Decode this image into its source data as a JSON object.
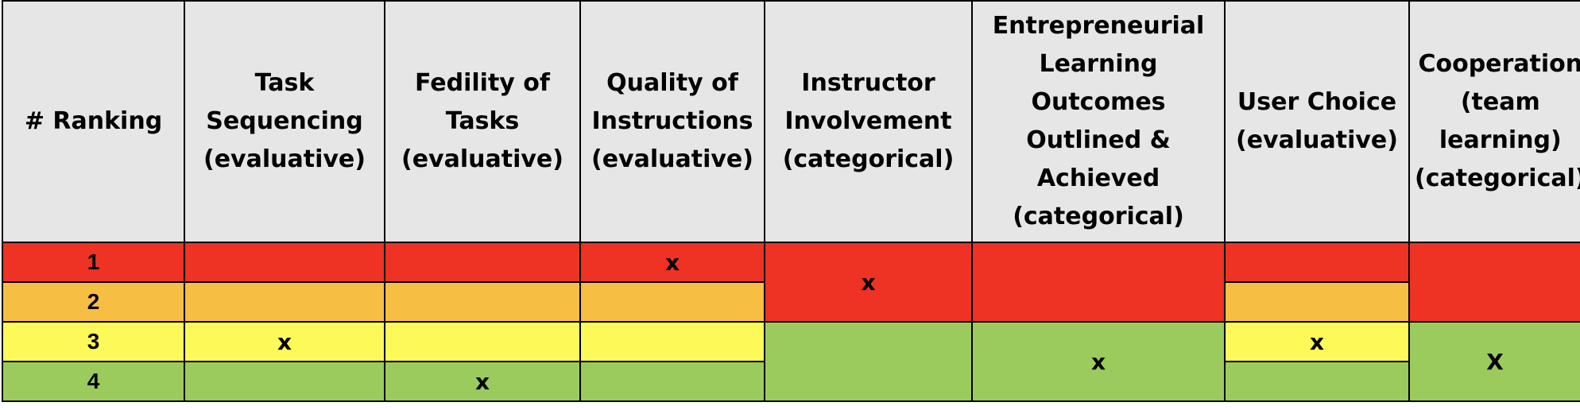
{
  "headers": [
    "# Ranking",
    "Task Sequencing (evaluative)",
    "Fedility of Tasks (evaluative)",
    "Quality of Instructions (evaluative)",
    "Instructor Involvement (categorical)",
    "Entrepreneurial Learning Outcomes Outlined & Achieved (categorical)",
    "User Choice (evaluative)",
    "Cooperation (team learning) (categorical)"
  ],
  "ranks": [
    "1",
    "2",
    "3",
    "4"
  ],
  "marks": {
    "task_sequencing": "x",
    "fedility": "x",
    "quality": "x",
    "instructor": "x",
    "entrepreneurial": "x",
    "user_choice": "x",
    "cooperation": "X"
  },
  "colors": {
    "rank_1": "#ee3224",
    "rank_2": "#f6be42",
    "rank_3": "#fdf958",
    "rank_4": "#9ccb5d",
    "header": "#e6e6e6"
  }
}
